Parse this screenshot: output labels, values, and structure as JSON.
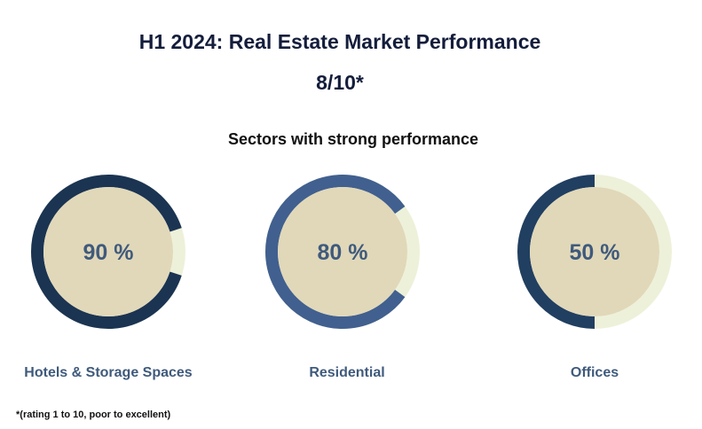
{
  "title": "H1 2024: Real Estate Market Performance",
  "rating": "8/10*",
  "subtitle": "Sectors with strong performance",
  "footnote": "*(rating 1 to 10, poor to excellent)",
  "chart_data": {
    "type": "pie",
    "title": "Sectors with strong performance",
    "categories": [
      "Hotels & Storage Spaces",
      "Residential",
      "Offices"
    ],
    "values": [
      90,
      80,
      50
    ],
    "value_labels": [
      "90 %",
      "80 %",
      "50 %"
    ],
    "max": 100,
    "colors": {
      "progress": [
        "#1b3452",
        "#41608f",
        "#213f61"
      ],
      "track": "#eef1d9",
      "inner": "#e1d8b9",
      "value_text": "#3f5a7c"
    }
  }
}
